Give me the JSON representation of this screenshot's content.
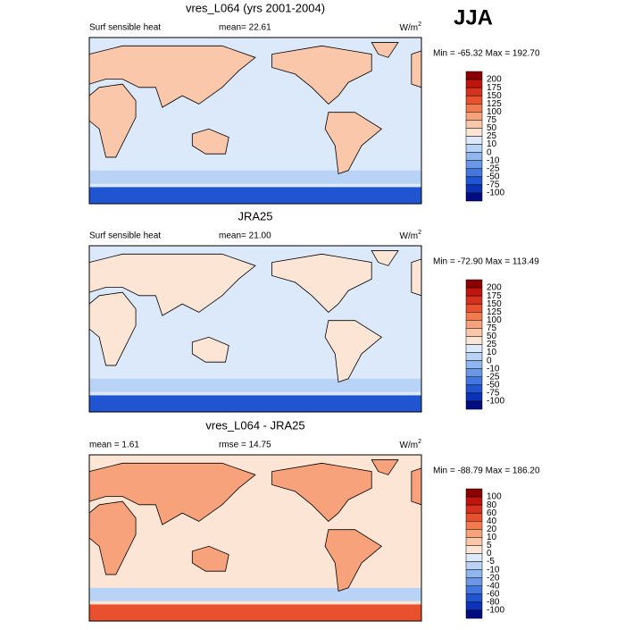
{
  "header": {
    "title": "JJA"
  },
  "panels": [
    {
      "title": "vres_L064 (yrs 2001-2004)",
      "left_label": "Surf sensible heat",
      "center_label": "mean= 22.61",
      "units": {
        "base": "W/m",
        "sup": "2"
      },
      "minmax": "Min = -65.32 Max = 192.70",
      "colorbar_labels": [
        "200",
        "175",
        "150",
        "125",
        "100",
        "75",
        "50",
        "25",
        "10",
        "0",
        "-10",
        "-25",
        "-50",
        "-75",
        "-100"
      ]
    },
    {
      "title": "JRA25",
      "left_label": "Surf sensible heat",
      "center_label": "mean= 21.00",
      "units": {
        "base": "W/m",
        "sup": "2"
      },
      "minmax": "Min = -72.90 Max = 113.49",
      "colorbar_labels": [
        "200",
        "175",
        "150",
        "125",
        "100",
        "75",
        "50",
        "25",
        "10",
        "0",
        "-10",
        "-25",
        "-50",
        "-75",
        "-100"
      ]
    },
    {
      "title": "vres_L064 - JRA25",
      "left_label": "mean =  1.61",
      "center_label": "rmse = 14.75",
      "units": {
        "base": "W/m",
        "sup": "2"
      },
      "minmax": "Min = -88.79 Max = 186.20",
      "colorbar_labels": [
        "100",
        "80",
        "60",
        "40",
        "20",
        "10",
        "5",
        "0",
        "-5",
        "-10",
        "-20",
        "-40",
        "-60",
        "-80",
        "-100"
      ]
    }
  ]
}
